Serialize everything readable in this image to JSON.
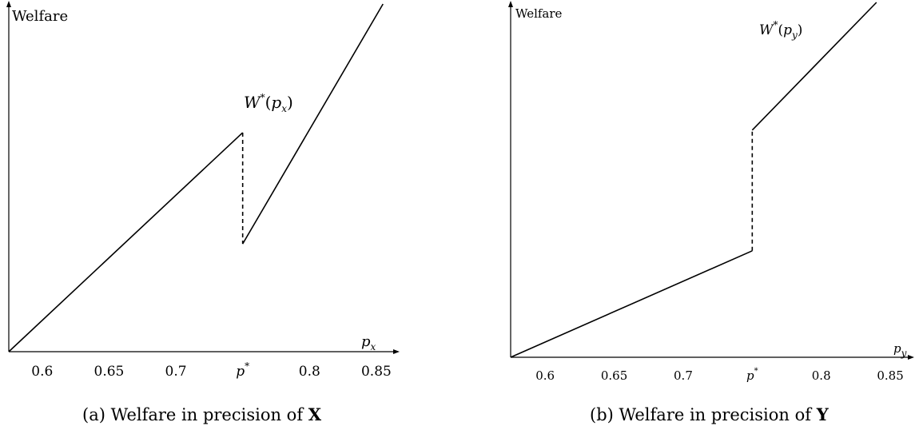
{
  "chart_data": [
    {
      "type": "line",
      "caption": {
        "prefix": "(a) Welfare in precision of ",
        "bold": "X"
      },
      "ylabel": "Welfare",
      "xlabel": {
        "base": "p",
        "sub": "x"
      },
      "x_ticks": [
        {
          "value": 0.6,
          "label": "0.6"
        },
        {
          "value": 0.65,
          "label": "0.65"
        },
        {
          "value": 0.7,
          "label": "0.7"
        },
        {
          "value": 0.75,
          "label": "p",
          "sup": "*"
        },
        {
          "value": 0.8,
          "label": "0.8"
        },
        {
          "value": 0.85,
          "label": "0.85"
        }
      ],
      "xlim": [
        0.575,
        0.865
      ],
      "ylim": [
        0,
        1
      ],
      "curve_label": {
        "W": "W",
        "star": "*",
        "open": "(",
        "p": "p",
        "sub": "x",
        "close": ")"
      },
      "segments": [
        {
          "x": [
            0.575,
            0.75
          ],
          "y": [
            0.0,
            0.63
          ],
          "style": "solid"
        },
        {
          "x": [
            0.75,
            0.75
          ],
          "y": [
            0.63,
            0.31
          ],
          "style": "dashed"
        },
        {
          "x": [
            0.75,
            0.855
          ],
          "y": [
            0.31,
            1.0
          ],
          "style": "solid"
        }
      ],
      "label_pos": {
        "x": 0.752,
        "y": 0.72
      }
    },
    {
      "type": "line",
      "caption": {
        "prefix": "(b) Welfare in precision of ",
        "bold": "Y"
      },
      "ylabel": "Welfare",
      "xlabel": {
        "base": "p",
        "sub": "y"
      },
      "x_ticks": [
        {
          "value": 0.6,
          "label": "0.6"
        },
        {
          "value": 0.65,
          "label": "0.65"
        },
        {
          "value": 0.7,
          "label": "0.7"
        },
        {
          "value": 0.75,
          "label": "p",
          "sup": "*"
        },
        {
          "value": 0.8,
          "label": "0.8"
        },
        {
          "value": 0.85,
          "label": "0.85"
        }
      ],
      "xlim": [
        0.575,
        0.865
      ],
      "ylim": [
        0,
        1
      ],
      "curve_label": {
        "W": "W",
        "star": "*",
        "open": "(",
        "p": "p",
        "sub": "y",
        "close": ")"
      },
      "segments": [
        {
          "x": [
            0.575,
            0.75
          ],
          "y": [
            0.0,
            0.3
          ],
          "style": "solid"
        },
        {
          "x": [
            0.75,
            0.75
          ],
          "y": [
            0.3,
            0.64
          ],
          "style": "dashed"
        },
        {
          "x": [
            0.75,
            0.84
          ],
          "y": [
            0.64,
            1.0
          ],
          "style": "solid"
        }
      ],
      "label_pos": {
        "x": 0.755,
        "y": 0.91
      }
    }
  ]
}
